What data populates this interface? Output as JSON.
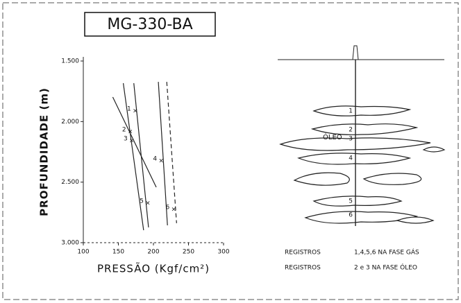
{
  "chart_data": {
    "type": "line",
    "title": "MG-330-BA",
    "x_label": "PRESSÃO (Kgf/cm²)",
    "y_label": "PROFUNDIDADE (m)",
    "xlim": [
      100,
      300
    ],
    "xticks": [
      100,
      150,
      200,
      250,
      300
    ],
    "ylim": [
      3000,
      1500
    ],
    "yticks": [
      {
        "value": 1500,
        "label": "1.500"
      },
      {
        "value": 2000,
        "label": "2.000"
      },
      {
        "value": 2500,
        "label": "2.500"
      },
      {
        "value": 3000,
        "label": "3.000"
      }
    ],
    "color": "#222",
    "series": [
      {
        "x": [
          142,
          204
        ],
        "values": [
          1798,
          2542
        ],
        "dashed": false
      },
      {
        "x": [
          157,
          186
        ],
        "values": [
          1683,
          2897
        ],
        "dashed": false
      },
      {
        "x": [
          172,
          193
        ],
        "values": [
          1683,
          2874
        ],
        "dashed": false
      },
      {
        "x": [
          207,
          220
        ],
        "values": [
          1672,
          2857
        ],
        "dashed": false
      },
      {
        "x": [
          219,
          233
        ],
        "values": [
          1672,
          2839
        ],
        "dashed": true
      }
    ],
    "points": {
      "labels": [
        "1",
        "2",
        "3",
        "4",
        "5",
        "6"
      ],
      "x": [
        174,
        167,
        169,
        211,
        192,
        229
      ],
      "values": [
        1912,
        2084,
        2158,
        2324,
        2673,
        2725
      ]
    }
  },
  "diagram": {
    "zone_labels": [
      "1",
      "2",
      "3",
      "4",
      "5",
      "6"
    ],
    "oil_label": "ÓLEO"
  },
  "notes": [
    [
      "REGISTROS",
      "1,4,5,6 NA FASE GÁS"
    ],
    [
      "REGISTROS",
      "2 e 3 NA FASE ÓLEO"
    ]
  ]
}
